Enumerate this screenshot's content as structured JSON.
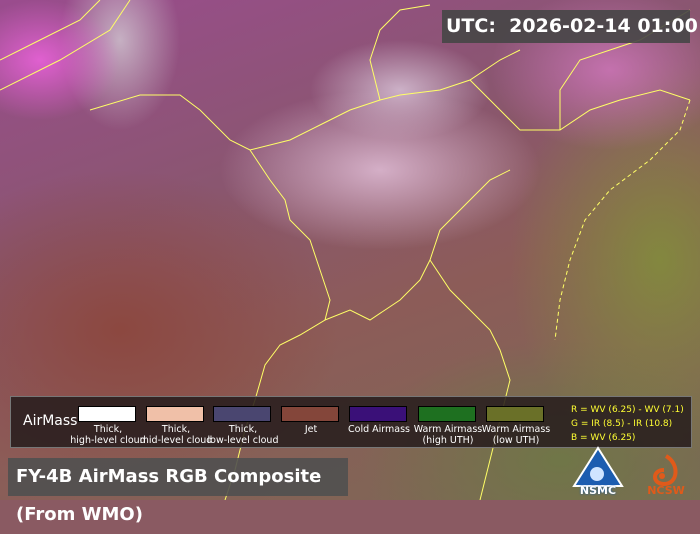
{
  "utc": {
    "label": "UTC:",
    "value": "2026-02-14 01:00"
  },
  "legend": {
    "title": "AirMass",
    "items": [
      {
        "label": "Thick,\nhigh-level cloud",
        "color": "#ffffff"
      },
      {
        "label": "Thick,\nmid-level cloud",
        "color": "#f0c0a8"
      },
      {
        "label": "Thick,\nlow-level cloud",
        "color": "#4a4670"
      },
      {
        "label": "Jet",
        "color": "#84463a"
      },
      {
        "label": "Cold Airmass",
        "color": "#3a1078"
      },
      {
        "label": "Warm Airmass\n(high UTH)",
        "color": "#1e7020"
      },
      {
        "label": "Warm Airmass\n(low UTH)",
        "color": "#6a7028"
      }
    ],
    "formula": [
      "R = WV (6.25)  - WV (7.1)",
      "G = IR (8.5)  - IR (10.8)",
      "B = WV (6.25)"
    ]
  },
  "title": "FY-4B AirMass RGB Composite (From WMO)",
  "logos": [
    "NSMC",
    "NCSW"
  ],
  "colors": {
    "border": "#ffff66",
    "formula_text": "#ffff33"
  }
}
